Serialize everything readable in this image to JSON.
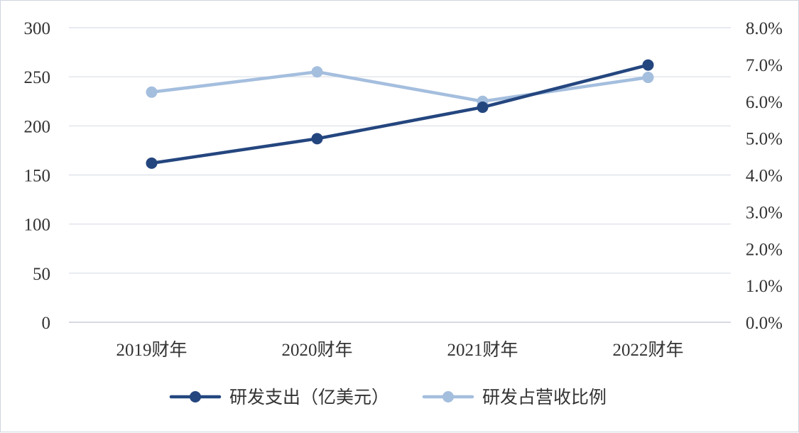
{
  "chart_data": {
    "type": "line",
    "categories": [
      "2019财年",
      "2020财年",
      "2021财年",
      "2022财年"
    ],
    "y_left": {
      "range": [
        0,
        300
      ],
      "ticks": [
        "0",
        "50",
        "100",
        "150",
        "200",
        "250",
        "300"
      ]
    },
    "y_right": {
      "range": [
        0,
        8
      ],
      "ticks": [
        "0.0%",
        "1.0%",
        "2.0%",
        "3.0%",
        "4.0%",
        "5.0%",
        "6.0%",
        "7.0%",
        "8.0%"
      ]
    },
    "grid": true,
    "legend_position": "bottom",
    "series": [
      {
        "name": "研发支出（亿美元）",
        "axis": "left",
        "values": [
          162,
          187,
          219,
          262
        ],
        "color": "#24467f"
      },
      {
        "name": "研发占营收比例",
        "axis": "right",
        "values": [
          6.25,
          6.8,
          6.0,
          6.65
        ],
        "color": "#a4bede"
      }
    ],
    "colors": {
      "grid": "#d9dee6",
      "axis_line": "#c9ced6",
      "text": "#333333"
    }
  }
}
